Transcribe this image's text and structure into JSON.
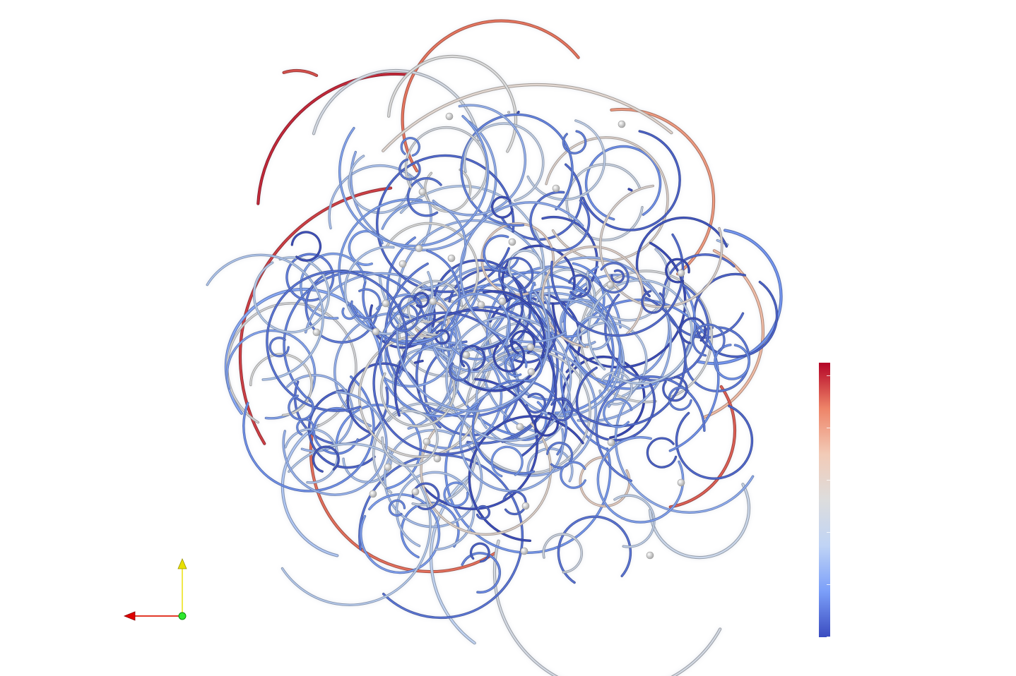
{
  "view": {
    "background": "#ffffff",
    "render_type": "streamline tubes with sphere seeds"
  },
  "colormap": {
    "name": "Cool to Warm",
    "stops": [
      "#3b4cc0",
      "#7b9ff9",
      "#c0d4f5",
      "#dddddd",
      "#f2cbb7",
      "#ee8468",
      "#b40426"
    ],
    "tick_count": 6
  },
  "axes_triad": {
    "x_color": "#ff0000",
    "y_color": "#ffff00",
    "z_color": "#00ff00"
  },
  "seed_color": "#d9d9d9",
  "tube_shadow": "#9aa6c2"
}
